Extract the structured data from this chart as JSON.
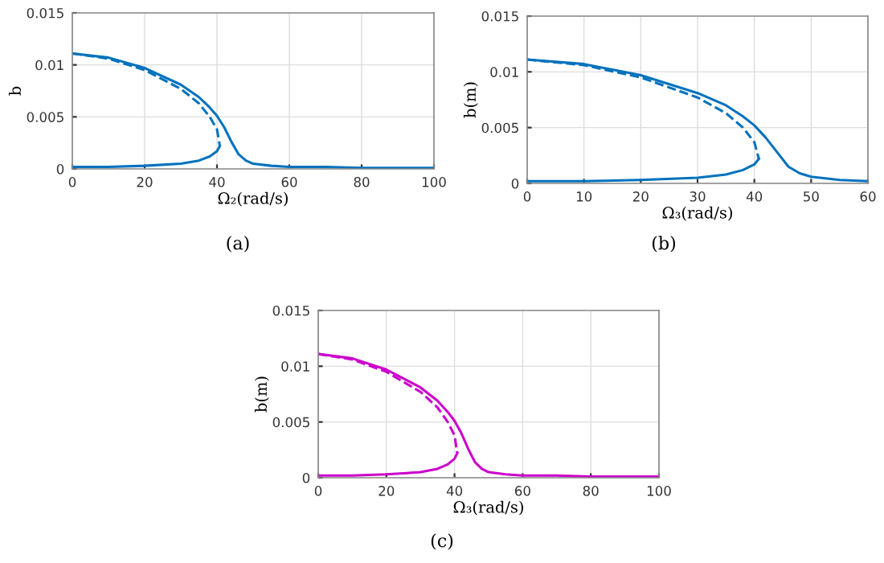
{
  "chart_data": [
    {
      "type": "line",
      "xlabel": "Ω₂(rad/s)",
      "ylabel": "b",
      "xlim": [
        0,
        100
      ],
      "ylim": [
        0,
        0.015
      ],
      "xticks": [
        0,
        20,
        40,
        60,
        80,
        100
      ],
      "yticks": [
        0,
        0.005,
        0.01,
        0.015
      ],
      "grid": true,
      "annotations": [
        "(a)"
      ],
      "series": [
        {
          "color": "#0072bd",
          "line_style": "solid",
          "x": [
            0,
            10,
            20,
            30,
            35,
            38,
            40,
            42,
            44,
            46,
            48,
            50,
            55,
            60,
            70,
            80,
            100
          ],
          "values": [
            0.0111,
            0.0107,
            0.0097,
            0.0081,
            0.0069,
            0.0059,
            0.0051,
            0.004,
            0.0026,
            0.0014,
            0.0008,
            0.0005,
            0.0003,
            0.0002,
            0.0002,
            0.0001,
            0.0001
          ]
        },
        {
          "color": "#0072bd",
          "line_style": "dashed",
          "x": [
            0,
            10,
            20,
            30,
            35,
            38,
            40,
            40.8
          ],
          "values": [
            0.0111,
            0.0106,
            0.0095,
            0.0077,
            0.0063,
            0.005,
            0.0038,
            0.0022
          ]
        },
        {
          "color": "#0072bd",
          "line_style": "solid",
          "x": [
            0,
            10,
            20,
            30,
            35,
            38,
            40,
            40.8
          ],
          "values": [
            0.0002,
            0.0002,
            0.0003,
            0.0005,
            0.0008,
            0.0012,
            0.0017,
            0.0022
          ]
        }
      ]
    },
    {
      "type": "line",
      "xlabel": "Ω₃(rad/s)",
      "ylabel": "b(m)",
      "xlim": [
        0,
        60
      ],
      "ylim": [
        0,
        0.015
      ],
      "xticks": [
        0,
        10,
        20,
        30,
        40,
        50,
        60
      ],
      "yticks": [
        0,
        0.005,
        0.01,
        0.015
      ],
      "grid": true,
      "annotations": [
        "(b)"
      ],
      "series": [
        {
          "color": "#0072bd",
          "line_style": "solid",
          "x": [
            0,
            10,
            20,
            30,
            35,
            38,
            40,
            42,
            44,
            46,
            48,
            50,
            55,
            60
          ],
          "values": [
            0.0111,
            0.0107,
            0.0097,
            0.0081,
            0.007,
            0.006,
            0.0052,
            0.0041,
            0.0028,
            0.0015,
            0.0009,
            0.0006,
            0.0003,
            0.0002
          ]
        },
        {
          "color": "#0072bd",
          "line_style": "dashed",
          "x": [
            0,
            10,
            20,
            30,
            35,
            38,
            40,
            40.8
          ],
          "values": [
            0.0111,
            0.0106,
            0.0095,
            0.0077,
            0.0063,
            0.005,
            0.0037,
            0.0022
          ]
        },
        {
          "color": "#0072bd",
          "line_style": "solid",
          "x": [
            0,
            10,
            20,
            30,
            35,
            38,
            40,
            40.8
          ],
          "values": [
            0.0002,
            0.0002,
            0.0003,
            0.0005,
            0.0008,
            0.0012,
            0.0017,
            0.0022
          ]
        }
      ]
    },
    {
      "type": "line",
      "xlabel": "Ω₃(rad/s)",
      "ylabel": "b(m)",
      "xlim": [
        0,
        100
      ],
      "ylim": [
        0,
        0.015
      ],
      "xticks": [
        0,
        20,
        40,
        60,
        80,
        100
      ],
      "yticks": [
        0,
        0.005,
        0.01,
        0.015
      ],
      "grid": true,
      "annotations": [
        "(c)"
      ],
      "series": [
        {
          "color": "#cc00cc",
          "line_style": "solid",
          "x": [
            0,
            10,
            20,
            30,
            35,
            38,
            40,
            42,
            44,
            46,
            48,
            50,
            55,
            60,
            70,
            80,
            100
          ],
          "values": [
            0.0111,
            0.0107,
            0.0097,
            0.0081,
            0.0069,
            0.0059,
            0.0051,
            0.004,
            0.0026,
            0.0014,
            0.0008,
            0.0005,
            0.0003,
            0.0002,
            0.0002,
            0.0001,
            0.0001
          ]
        },
        {
          "color": "#cc00cc",
          "line_style": "dashed",
          "x": [
            0,
            10,
            20,
            30,
            35,
            38,
            40,
            40.8
          ],
          "values": [
            0.0111,
            0.0106,
            0.0095,
            0.0077,
            0.0063,
            0.005,
            0.0038,
            0.0022
          ]
        },
        {
          "color": "#cc00cc",
          "line_style": "solid",
          "x": [
            0,
            10,
            20,
            30,
            35,
            38,
            40,
            40.8
          ],
          "values": [
            0.0002,
            0.0002,
            0.0003,
            0.0005,
            0.0008,
            0.0012,
            0.0017,
            0.0022
          ]
        }
      ]
    }
  ]
}
